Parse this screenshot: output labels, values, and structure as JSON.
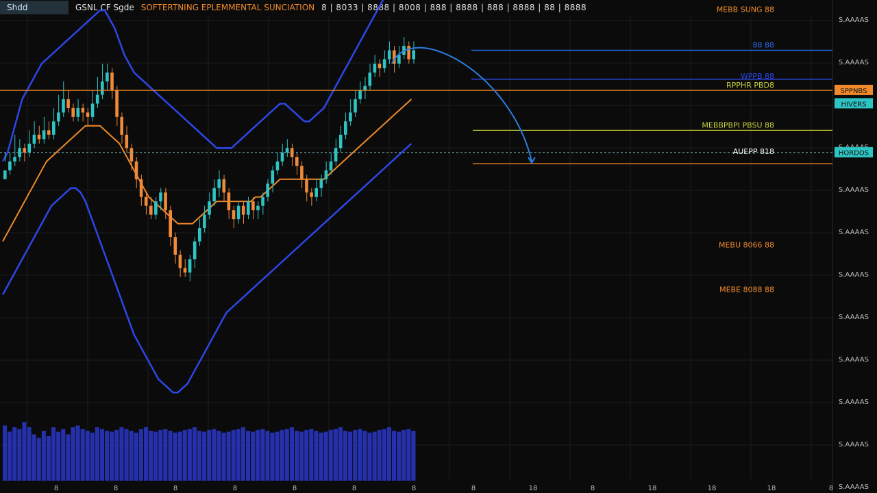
{
  "header": {
    "symbol_box": "Shdd",
    "title": "GSNL CF Sgde",
    "subtitle": "SOFTERTNING EPLEMMENTAL SUNCIATION",
    "ohlc_text": "8 | 8033 | 8888 | 8008 | 888 | 8888 | 888 | 8888 | 88 | 8888"
  },
  "colors": {
    "background": "#0b0b0c",
    "grid": "#1c1c1e",
    "up": "#2fc4c4",
    "down": "#f08a3a",
    "band_blue": "#2d47e8",
    "ma_orange": "#f08a2a",
    "volume": "#2a38c9",
    "line_yellow": "#c8d23a",
    "line_blue": "#1d63d8"
  },
  "chart_data": {
    "type": "line",
    "price_axis_labels": [
      "S.AAAAS",
      "S.AAAAS",
      "S.AAAAS",
      "S.AAAAS",
      "S.AAAAS",
      "S.AAAAS",
      "S.AAAAS",
      "S.AAAAS",
      "S.AAAAS",
      "S.AAAAS",
      "S.AAAAS",
      "S.AAAAS"
    ],
    "time_axis_labels": [
      "8",
      "8",
      "8",
      "8",
      "8",
      "8",
      "8",
      "8",
      "18",
      "8",
      "18",
      "18",
      "18",
      "8"
    ],
    "ylim": [
      0,
      100
    ],
    "n_bars": 100,
    "candles": [
      [
        66,
        68,
        72,
        70
      ],
      [
        68,
        70,
        72,
        67
      ],
      [
        70,
        71,
        76,
        69
      ],
      [
        71,
        73,
        75,
        70
      ],
      [
        73,
        72,
        74,
        70
      ],
      [
        72,
        74,
        77,
        71
      ],
      [
        74,
        76,
        79,
        73
      ],
      [
        76,
        75,
        78,
        74
      ],
      [
        75,
        77,
        80,
        74
      ],
      [
        77,
        76,
        79,
        75
      ],
      [
        76,
        79,
        82,
        75
      ],
      [
        79,
        81,
        85,
        78
      ],
      [
        81,
        84,
        88,
        80
      ],
      [
        84,
        82,
        86,
        81
      ],
      [
        82,
        80,
        83,
        79
      ],
      [
        80,
        82,
        84,
        79
      ],
      [
        82,
        81,
        83,
        79
      ],
      [
        81,
        80,
        82,
        78
      ],
      [
        80,
        83,
        86,
        79
      ],
      [
        83,
        85,
        89,
        82
      ],
      [
        85,
        88,
        92,
        84
      ],
      [
        88,
        90,
        92,
        86
      ],
      [
        90,
        86,
        91,
        84
      ],
      [
        86,
        80,
        87,
        78
      ],
      [
        80,
        76,
        81,
        74
      ],
      [
        76,
        73,
        78,
        72
      ],
      [
        73,
        70,
        74,
        68
      ],
      [
        70,
        66,
        71,
        64
      ],
      [
        66,
        62,
        67,
        60
      ],
      [
        62,
        60,
        63,
        58
      ],
      [
        60,
        58,
        62,
        57
      ],
      [
        58,
        61,
        62,
        57
      ],
      [
        61,
        63,
        64,
        59
      ],
      [
        63,
        59,
        64,
        57
      ],
      [
        59,
        53,
        60,
        51
      ],
      [
        53,
        49,
        54,
        47
      ],
      [
        49,
        46,
        50,
        44
      ],
      [
        46,
        45,
        48,
        44
      ],
      [
        45,
        48,
        49,
        43
      ],
      [
        48,
        52,
        53,
        46
      ],
      [
        52,
        55,
        57,
        51
      ],
      [
        55,
        58,
        60,
        54
      ],
      [
        58,
        61,
        63,
        57
      ],
      [
        61,
        64,
        66,
        60
      ],
      [
        64,
        66,
        68,
        62
      ],
      [
        66,
        63,
        67,
        61
      ],
      [
        63,
        59,
        64,
        57
      ],
      [
        59,
        57,
        60,
        55
      ],
      [
        57,
        60,
        61,
        56
      ],
      [
        60,
        58,
        61,
        56
      ],
      [
        58,
        61,
        62,
        57
      ],
      [
        61,
        59,
        62,
        57
      ],
      [
        59,
        60,
        61,
        57
      ],
      [
        60,
        62,
        63,
        58
      ],
      [
        62,
        65,
        66,
        61
      ],
      [
        65,
        68,
        69,
        63
      ],
      [
        68,
        70,
        72,
        67
      ],
      [
        70,
        72,
        74,
        69
      ],
      [
        72,
        73,
        75,
        71
      ],
      [
        73,
        71,
        74,
        69
      ],
      [
        71,
        69,
        72,
        67
      ],
      [
        69,
        66,
        70,
        64
      ],
      [
        66,
        63,
        67,
        61
      ],
      [
        63,
        62,
        64,
        60
      ],
      [
        62,
        64,
        66,
        61
      ],
      [
        64,
        66,
        67,
        62
      ],
      [
        66,
        68,
        70,
        65
      ],
      [
        68,
        70,
        72,
        67
      ],
      [
        70,
        73,
        75,
        69
      ],
      [
        73,
        76,
        78,
        72
      ],
      [
        76,
        79,
        81,
        75
      ],
      [
        79,
        81,
        84,
        78
      ],
      [
        81,
        84,
        86,
        80
      ],
      [
        84,
        86,
        88,
        83
      ],
      [
        86,
        87,
        89,
        84
      ],
      [
        87,
        90,
        92,
        86
      ],
      [
        90,
        92,
        94,
        89
      ],
      [
        92,
        91,
        93,
        89
      ],
      [
        91,
        93,
        95,
        90
      ],
      [
        93,
        95,
        97,
        92
      ],
      [
        95,
        92,
        96,
        90
      ],
      [
        92,
        94,
        96,
        91
      ],
      [
        94,
        96,
        98,
        93
      ],
      [
        96,
        93,
        97,
        92
      ],
      [
        93,
        95,
        97,
        92
      ]
    ],
    "band_upper": [
      70,
      72,
      76,
      80,
      84,
      86,
      88,
      90,
      92,
      93,
      94,
      95,
      96,
      97,
      98,
      99,
      100,
      101,
      102,
      103,
      104,
      104,
      102,
      100,
      97,
      94,
      92,
      90,
      89,
      88,
      87,
      86,
      85,
      84,
      83,
      82,
      81,
      80,
      79,
      78,
      77,
      76,
      75,
      74,
      73,
      73,
      73,
      73,
      74,
      75,
      76,
      77,
      78,
      79,
      80,
      81,
      82,
      83,
      83,
      82,
      81,
      80,
      79,
      79,
      80,
      81,
      82,
      84,
      86,
      88,
      90,
      92,
      94,
      96,
      98,
      100,
      102,
      104,
      106,
      108,
      109,
      110,
      111,
      112,
      113
    ],
    "band_lower": [
      40,
      42,
      44,
      46,
      48,
      50,
      52,
      54,
      56,
      58,
      60,
      61,
      62,
      63,
      64,
      64,
      63,
      61,
      58,
      55,
      52,
      49,
      46,
      43,
      40,
      37,
      34,
      31,
      29,
      27,
      25,
      23,
      21,
      20,
      19,
      18,
      18,
      19,
      20,
      22,
      24,
      26,
      28,
      30,
      32,
      34,
      36,
      37,
      38,
      39,
      40,
      41,
      42,
      43,
      44,
      45,
      46,
      47,
      48,
      49,
      50,
      51,
      52,
      53,
      54,
      55,
      56,
      57,
      58,
      59,
      60,
      61,
      62,
      63,
      64,
      65,
      66,
      67,
      68,
      69,
      70,
      71,
      72,
      73,
      74
    ],
    "moving_average": [
      52,
      54,
      56,
      58,
      60,
      62,
      64,
      66,
      68,
      70,
      71,
      72,
      73,
      74,
      75,
      76,
      77,
      78,
      78,
      78,
      78,
      77,
      76,
      75,
      74,
      72,
      70,
      68,
      66,
      64,
      62,
      61,
      60,
      59,
      58,
      57,
      56,
      56,
      56,
      56,
      57,
      58,
      59,
      60,
      61,
      61,
      61,
      61,
      61,
      61,
      61,
      61,
      62,
      62,
      63,
      64,
      65,
      66,
      66,
      66,
      66,
      66,
      66,
      66,
      66,
      66,
      66,
      67,
      68,
      69,
      70,
      71,
      72,
      73,
      74,
      75,
      76,
      77,
      78,
      79,
      80,
      81,
      82,
      83,
      84
    ],
    "volume": [
      62,
      55,
      60,
      58,
      66,
      60,
      52,
      48,
      56,
      50,
      60,
      55,
      58,
      52,
      60,
      62,
      58,
      56,
      54,
      60,
      58,
      56,
      55,
      57,
      60,
      58,
      56,
      54,
      58,
      60,
      56,
      55,
      57,
      58,
      56,
      54,
      55,
      57,
      58,
      60,
      56,
      55,
      57,
      58,
      56,
      54,
      55,
      57,
      58,
      60,
      56,
      55,
      57,
      58,
      56,
      54,
      55,
      57,
      58,
      60,
      56,
      55,
      57,
      58,
      56,
      54,
      55,
      57,
      58,
      60,
      56,
      55,
      57,
      58,
      56,
      54,
      55,
      57,
      58,
      60,
      56,
      55,
      57,
      58,
      56
    ],
    "annotations": [
      {
        "text": "MEBB SUNG 88",
        "price": 103,
        "color": "#f08a2a"
      },
      {
        "text": "88 88",
        "price": 95,
        "color": "#2d6cf0"
      },
      {
        "text": "WPPB 88",
        "price": 88,
        "color": "#2d47e8"
      },
      {
        "text": "RPPHR PBD8",
        "price": 86,
        "color": "#c8d23a"
      },
      {
        "text": "MEBBPBPI PBSU 88",
        "price": 77,
        "color": "#c8d23a"
      },
      {
        "text": "AUEPP 818",
        "price": 71,
        "color": "#ffffff"
      },
      {
        "text": "MEBU 8066 88",
        "price": 50,
        "color": "#f08a2a"
      },
      {
        "text": "MEBE 8088 88",
        "price": 40,
        "color": "#f08a2a"
      }
    ],
    "price_tags": [
      {
        "text": "SPPNBS",
        "price": 86,
        "color": "#f08a2a"
      },
      {
        "text": "HIVERS",
        "price": 83,
        "color": "#2fc4c4"
      },
      {
        "text": "HORDOS",
        "price": 72,
        "color": "#2fc4c4"
      }
    ]
  }
}
